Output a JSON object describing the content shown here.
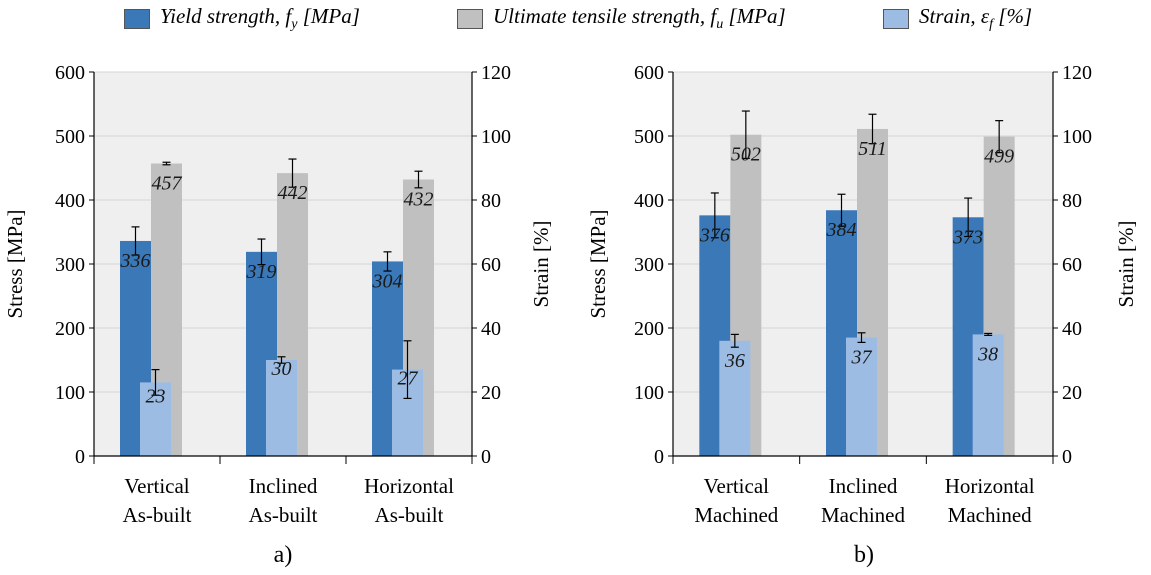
{
  "legend": {
    "items": [
      {
        "label": "Yield strength, ",
        "var": "f",
        "sub": "y",
        "suffix": " [MPa]",
        "color": "#3a78b8"
      },
      {
        "label": "Ultimate tensile strength, ",
        "var": "f",
        "sub": "u",
        "suffix": " [MPa]",
        "color": "#c0c0c0"
      },
      {
        "label": "Strain, ",
        "var": "ε",
        "sub": "f",
        "suffix": " [%]",
        "color": "#9dbce3"
      }
    ]
  },
  "colors": {
    "yield": "#3a78b8",
    "uts": "#c0c0c0",
    "strain": "#9dbce3",
    "plot_bg": "#efefef",
    "grid": "#d4d4d4"
  },
  "chart_data": [
    {
      "type": "bar",
      "panel_label": "a)",
      "categories": [
        [
          "Vertical",
          "As-built"
        ],
        [
          "Inclined",
          "As-built"
        ],
        [
          "Horizontal",
          "As-built"
        ]
      ],
      "ylabel": "Stress [MPa]",
      "y2label": "Strain [%]",
      "ylim": [
        0,
        600
      ],
      "y2lim": [
        0,
        120
      ],
      "yticks": [
        "0",
        "100",
        "200",
        "300",
        "400",
        "500",
        "600"
      ],
      "y2ticks": [
        "0",
        "20",
        "40",
        "60",
        "80",
        "100",
        "120"
      ],
      "series": [
        {
          "name": "Yield strength, fy [MPa]",
          "axis": "left",
          "values": [
            336,
            319,
            304
          ],
          "labels": [
            "336",
            "319",
            "304"
          ],
          "error": [
            22,
            20,
            15
          ]
        },
        {
          "name": "Ultimate tensile strength, fu [MPa]",
          "axis": "left",
          "values": [
            457,
            442,
            432
          ],
          "labels": [
            "457",
            "442",
            "432"
          ],
          "error": [
            2,
            22,
            13
          ]
        },
        {
          "name": "Strain, εf [%]",
          "axis": "right",
          "values": [
            23,
            30,
            27
          ],
          "labels": [
            "23",
            "30",
            "27"
          ],
          "error": [
            4,
            1,
            9
          ]
        }
      ]
    },
    {
      "type": "bar",
      "panel_label": "b)",
      "categories": [
        [
          "Vertical",
          "Machined"
        ],
        [
          "Inclined",
          "Machined"
        ],
        [
          "Horizontal",
          "Machined"
        ]
      ],
      "ylabel": "Stress [MPa]",
      "y2label": "Strain [%]",
      "ylim": [
        0,
        600
      ],
      "y2lim": [
        0,
        120
      ],
      "yticks": [
        "0",
        "100",
        "200",
        "300",
        "400",
        "500",
        "600"
      ],
      "y2ticks": [
        "0",
        "20",
        "40",
        "60",
        "80",
        "100",
        "120"
      ],
      "series": [
        {
          "name": "Yield strength, fy [MPa]",
          "axis": "left",
          "values": [
            376,
            384,
            373
          ],
          "labels": [
            "376",
            "384",
            "373"
          ],
          "error": [
            35,
            25,
            30
          ]
        },
        {
          "name": "Ultimate tensile strength, fu [MPa]",
          "axis": "left",
          "values": [
            502,
            511,
            499
          ],
          "labels": [
            "502",
            "511",
            "499"
          ],
          "error": [
            37,
            23,
            25
          ]
        },
        {
          "name": "Strain, εf [%]",
          "axis": "right",
          "values": [
            36,
            37,
            38
          ],
          "labels": [
            "36",
            "37",
            "38"
          ],
          "error": [
            2,
            1.5,
            0.3
          ]
        }
      ]
    }
  ]
}
